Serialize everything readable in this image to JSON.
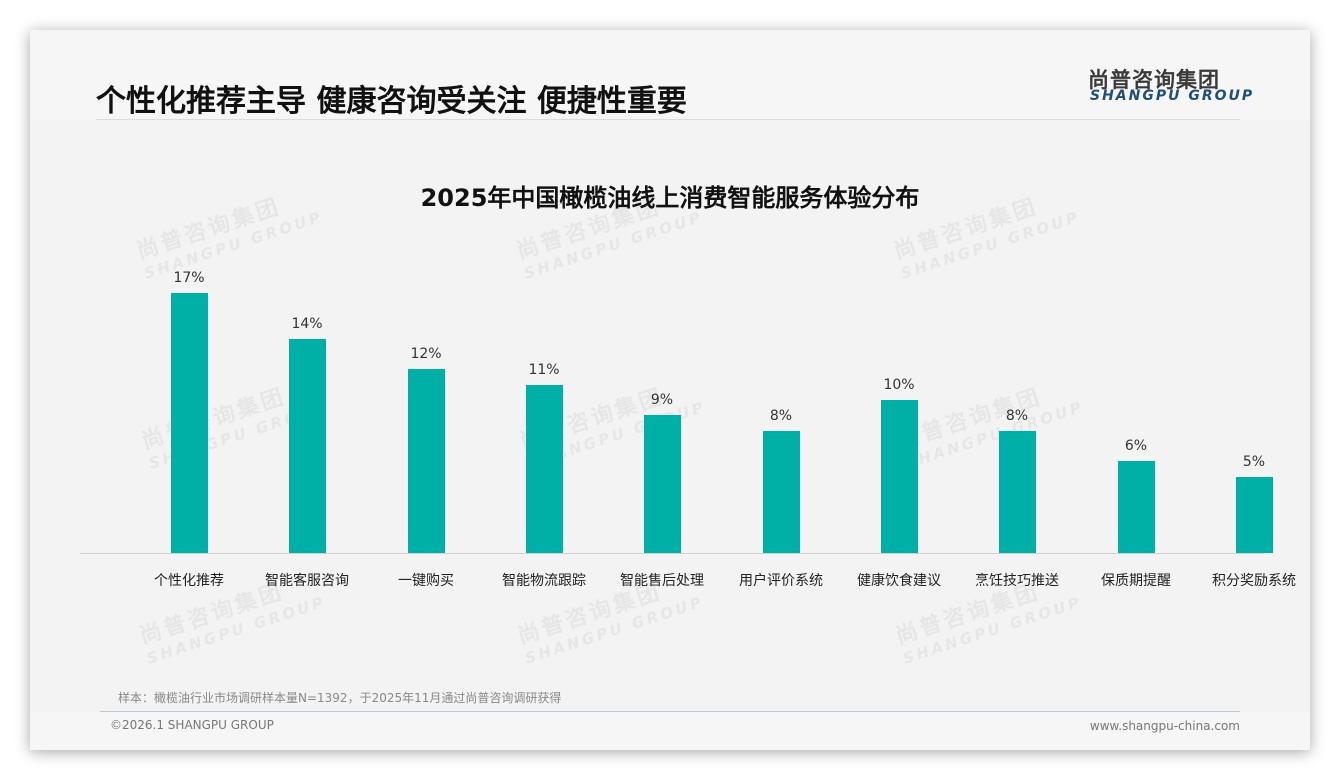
{
  "header": {
    "headline": "个性化推荐主导 健康咨询受关注 便捷性重要",
    "logo_cn": "尚普咨询集团",
    "logo_en": "SHANGPU GROUP"
  },
  "watermark": {
    "cn": "尚普咨询集团",
    "en": "SHANGPU GROUP"
  },
  "colors": {
    "bar": "#00b0a7",
    "logo_en": "#1f4e79"
  },
  "chart_data": {
    "type": "bar",
    "title": "2025年中国橄榄油线上消费智能服务体验分布",
    "xlabel": "",
    "ylabel": "",
    "categories": [
      "个性化推荐",
      "智能客服咨询",
      "一键购买",
      "智能物流跟踪",
      "智能售后处理",
      "用户评价系统",
      "健康饮食建议",
      "烹饪技巧推送",
      "保质期提醒",
      "积分奖励系统"
    ],
    "values": [
      17,
      14,
      12,
      11,
      9,
      8,
      10,
      8,
      6,
      5
    ],
    "value_labels": [
      "17%",
      "14%",
      "12%",
      "11%",
      "9%",
      "8%",
      "10%",
      "8%",
      "6%",
      "5%"
    ],
    "unit": "%",
    "ylim": [
      0,
      20
    ],
    "grid": false,
    "legend": null,
    "bar_color": "#00b0a7"
  },
  "footer": {
    "note": "样本：橄榄油行业市场调研样本量N=1392，于2025年11月通过尚普咨询调研获得",
    "copyright": "©2026.1 SHANGPU GROUP",
    "website": "www.shangpu-china.com"
  }
}
